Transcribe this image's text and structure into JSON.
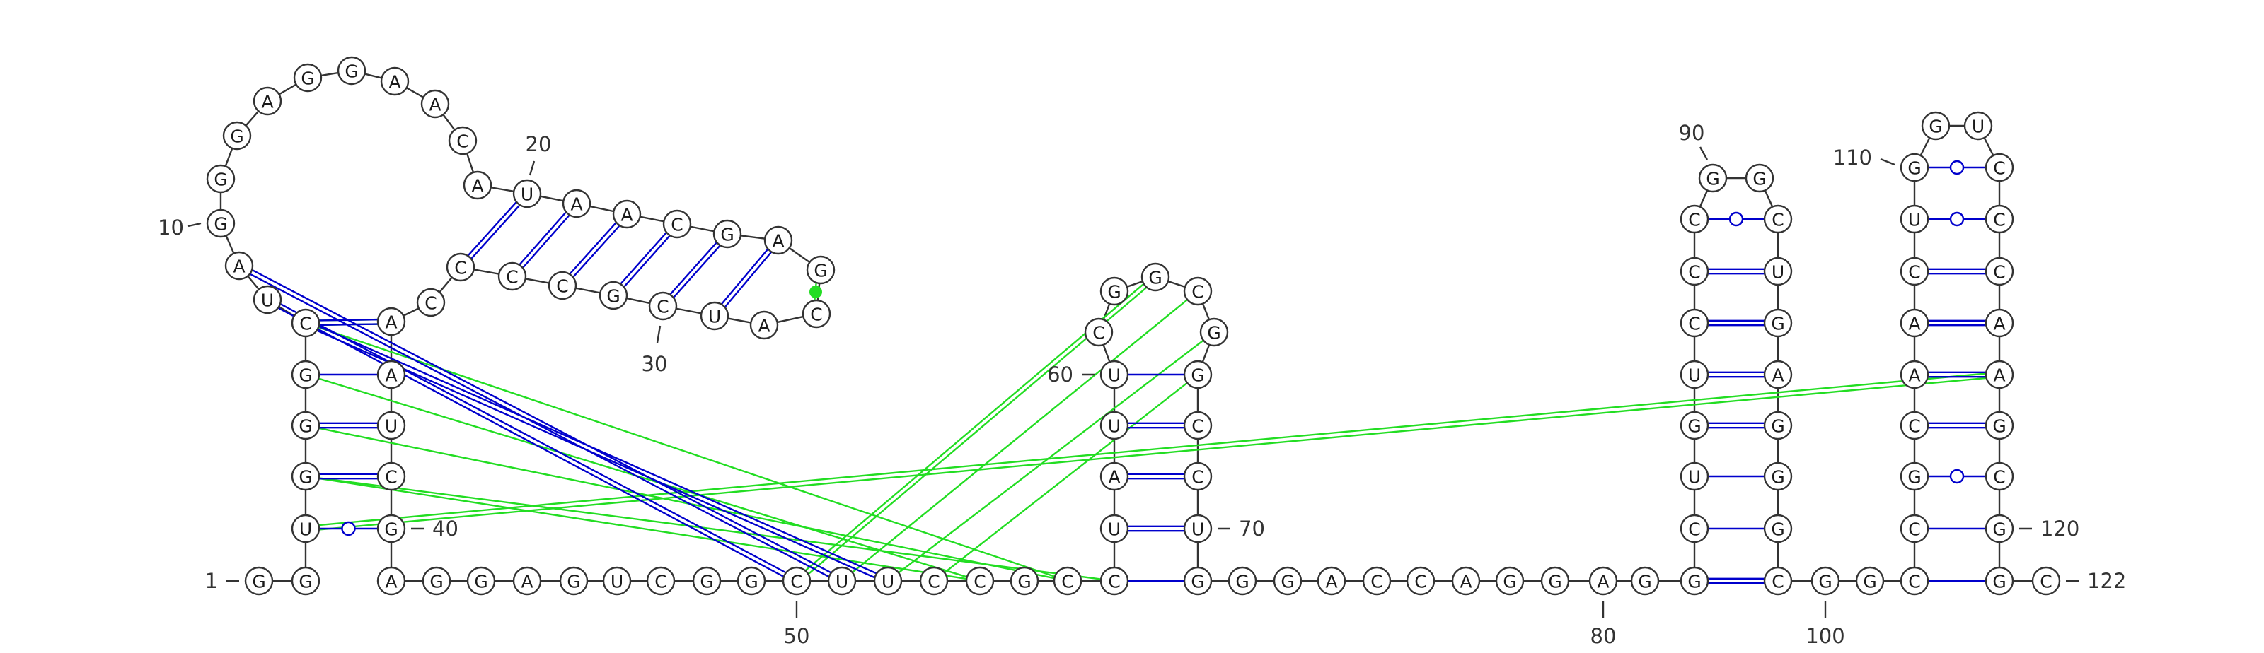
{
  "sequence": "GGUGGGCUAGGGAGGAACAUAACGAGCAUCGCCCCAAUCGAGGAGUCGGCUUCCGCCUAUUCGGCGGCCUGGGACCAGGAGGCUGUCCCGGCUGAGGGCGGCCGCAACUGGUCCCAAGCGGC",
  "numbering": [
    {
      "pos": 1,
      "text": "1"
    },
    {
      "pos": 10,
      "text": "10"
    },
    {
      "pos": 20,
      "text": "20"
    },
    {
      "pos": 30,
      "text": "30"
    },
    {
      "pos": 40,
      "text": "40"
    },
    {
      "pos": 50,
      "text": "50"
    },
    {
      "pos": 60,
      "text": "60"
    },
    {
      "pos": 70,
      "text": "70"
    },
    {
      "pos": 80,
      "text": "80"
    },
    {
      "pos": 90,
      "text": "90"
    },
    {
      "pos": 100,
      "text": "100"
    },
    {
      "pos": 110,
      "text": "110"
    },
    {
      "pos": 120,
      "text": "120"
    },
    {
      "pos": 122,
      "text": "122"
    }
  ],
  "pairs": [
    {
      "i": 2,
      "j": 45,
      "type": "wobble",
      "color": "#0000cc"
    },
    {
      "i": 10,
      "j": 28,
      "type": "canonical",
      "color": "#0000cc"
    },
    {
      "i": 11,
      "j": 29,
      "type": "canonical",
      "color": "#0000cc"
    },
    {
      "i": 12,
      "j": 30,
      "type": "canonical",
      "color": "#0000cc"
    },
    {
      "i": 13,
      "j": 31,
      "type": "canonical",
      "color": "#0000cc"
    },
    {
      "i": 16,
      "j": 34,
      "type": "canonical",
      "color": "#0000cc"
    },
    {
      "i": 17,
      "j": 35,
      "type": "canonical",
      "color": "#0000cc"
    },
    {
      "i": 20,
      "j": 52,
      "type": "canonical",
      "color": "#0000cc"
    },
    {
      "i": 21,
      "j": 51,
      "type": "canonical",
      "color": "#0000cc"
    },
    {
      "i": 22,
      "j": 50,
      "type": "canonical",
      "color": "#0000cc"
    },
    {
      "i": 23,
      "j": 49,
      "type": "canonical",
      "color": "#0000cc"
    },
    {
      "i": 24,
      "j": 48,
      "type": "canonical",
      "color": "#0000cc"
    },
    {
      "i": 25,
      "j": 47,
      "type": "canonical",
      "color": "#0000cc"
    },
    {
      "i": 26,
      "j": 46,
      "type": "canonical",
      "color": "#0000cc"
    },
    {
      "i": 56,
      "j": 66,
      "type": "single",
      "color": "#0000cc"
    },
    {
      "i": 57,
      "j": 65,
      "type": "canonical",
      "color": "#0000cc"
    },
    {
      "i": 58,
      "j": 64,
      "type": "canonical",
      "color": "#0000cc"
    },
    {
      "i": 59,
      "j": 63,
      "type": "canonical",
      "color": "#0000cc"
    },
    {
      "i": 60,
      "j": 62,
      "type": "single",
      "color": "#0000cc"
    },
    {
      "i": 71,
      "j": 96,
      "type": "canonical",
      "color": "#0000cc"
    },
    {
      "i": 72,
      "j": 95,
      "type": "single",
      "color": "#0000cc"
    },
    {
      "i": 73,
      "j": 94,
      "type": "single",
      "color": "#0000cc"
    },
    {
      "i": 74,
      "j": 93,
      "type": "canonical",
      "color": "#0000cc"
    },
    {
      "i": 75,
      "j": 92,
      "type": "canonical",
      "color": "#0000cc"
    },
    {
      "i": 76,
      "j": 91,
      "type": "canonical",
      "color": "#0000cc"
    },
    {
      "i": 77,
      "j": 90,
      "type": "canonical",
      "color": "#0000cc"
    },
    {
      "i": 78,
      "j": 89,
      "type": "canonical",
      "color": "#0000cc"
    },
    {
      "i": 79,
      "j": 88,
      "type": "wobble",
      "color": "#0000cc"
    },
    {
      "i": 81,
      "j": 102,
      "type": "single",
      "color": "#0000cc"
    },
    {
      "i": 83,
      "j": 101,
      "type": "canonical",
      "color": "#0000cc"
    },
    {
      "i": 84,
      "j": 100,
      "type": "canonical",
      "color": "#0000cc"
    },
    {
      "i": 85,
      "j": 99,
      "type": "canonical",
      "color": "#0000cc"
    },
    {
      "i": 86,
      "j": 98,
      "type": "canonical",
      "color": "#0000cc"
    },
    {
      "i": 103,
      "j": 121,
      "type": "single",
      "color": "#0000cc"
    },
    {
      "i": 104,
      "j": 120,
      "type": "single",
      "color": "#0000cc"
    },
    {
      "i": 105,
      "j": 119,
      "type": "wobble",
      "color": "#0000cc"
    },
    {
      "i": 106,
      "j": 118,
      "type": "canonical",
      "color": "#0000cc"
    },
    {
      "i": 107,
      "j": 117,
      "type": "canonical",
      "color": "#0000cc"
    },
    {
      "i": 108,
      "j": 116,
      "type": "canonical",
      "color": "#0000cc"
    },
    {
      "i": 109,
      "j": 115,
      "type": "canonical",
      "color": "#0000cc"
    },
    {
      "i": 110,
      "j": 114,
      "type": "canonical",
      "color": "#0000cc"
    },
    {
      "i": 111,
      "j": 113,
      "type": "wobble",
      "color": "#0000cc"
    },
    {
      "i": 112,
      "j": 116,
      "type": "wobble",
      "color": "#0000cc"
    },
    {
      "i": 20,
      "j": 52,
      "type": "single",
      "color": "#22dd22"
    },
    {
      "i": 20,
      "j": 112,
      "type": "single",
      "color": "#22dd22"
    },
    {
      "i": 21,
      "j": 51,
      "type": "single",
      "color": "#22dd22"
    },
    {
      "i": 22,
      "j": 50,
      "type": "single",
      "color": "#22dd22"
    },
    {
      "i": 24,
      "j": 48,
      "type": "single",
      "color": "#22dd22"
    },
    {
      "i": 25,
      "j": 47,
      "type": "single",
      "color": "#22dd22"
    },
    {
      "i": 26,
      "j": 46,
      "type": "single",
      "color": "#22dd22"
    },
    {
      "i": 34,
      "j": 113,
      "type": "single",
      "color": "#22dd22"
    },
    {
      "i": 37,
      "j": 64,
      "type": "single",
      "color": "#22dd22"
    },
    {
      "i": 49,
      "j": 66,
      "type": "single",
      "color": "#22dd22"
    },
    {
      "i": 49,
      "j": 68,
      "type": "single",
      "color": "#22dd22"
    },
    {
      "i": 50,
      "j": 67,
      "type": "single",
      "color": "#22dd22"
    },
    {
      "i": 65,
      "j": 66,
      "type": "single",
      "color": "#22dd22"
    },
    {
      "i": 44,
      "j": 65,
      "type": "single",
      "color": "#22dd22"
    },
    {
      "i": 27,
      "j": 33,
      "type": "dot",
      "color": "#22dd22"
    }
  ]
}
